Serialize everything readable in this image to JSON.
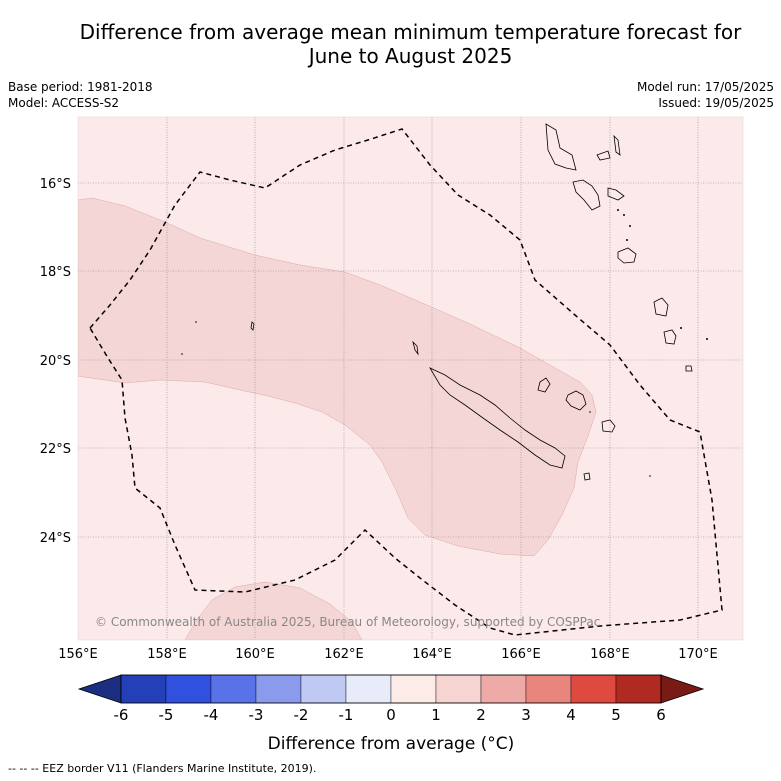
{
  "title_line1": "Difference from average mean minimum temperature forecast for",
  "title_line2": "June to August 2025",
  "base_period": "Base period: 1981-2018",
  "model": "Model: ACCESS-S2",
  "model_run": "Model run: 17/05/2025",
  "issued": "Issued: 19/05/2025",
  "lat_labels": [
    "16°S",
    "18°S",
    "20°S",
    "22°S",
    "24°S"
  ],
  "lon_labels": [
    "156°E",
    "158°E",
    "160°E",
    "162°E",
    "164°E",
    "166°E",
    "168°E",
    "170°E"
  ],
  "copyright": "© Commonwealth of Australia 2025, Bureau of Meteorology, supported by COSPPac",
  "colorbar": {
    "tick_labels": [
      "-6",
      "-5",
      "-4",
      "-3",
      "-2",
      "-1",
      "0",
      "1",
      "2",
      "3",
      "4",
      "5",
      "6"
    ],
    "colors": [
      "#1b2e80",
      "#2440b8",
      "#3050e0",
      "#5a72e8",
      "#8a9aec",
      "#c0c8f4",
      "#e8ecfa",
      "#fcebe6",
      "#f6d4d2",
      "#eeaaa6",
      "#e8857c",
      "#de4a40",
      "#b02a22",
      "#7a1a14"
    ],
    "label": "Difference from average (°C)"
  },
  "legend_text": "-- -- -- EEZ border V11 (Flanders Marine Institute, 2019).",
  "map_colors": {
    "background": "#fbeae9",
    "anomaly_1_2": "#f5d6d6"
  }
}
